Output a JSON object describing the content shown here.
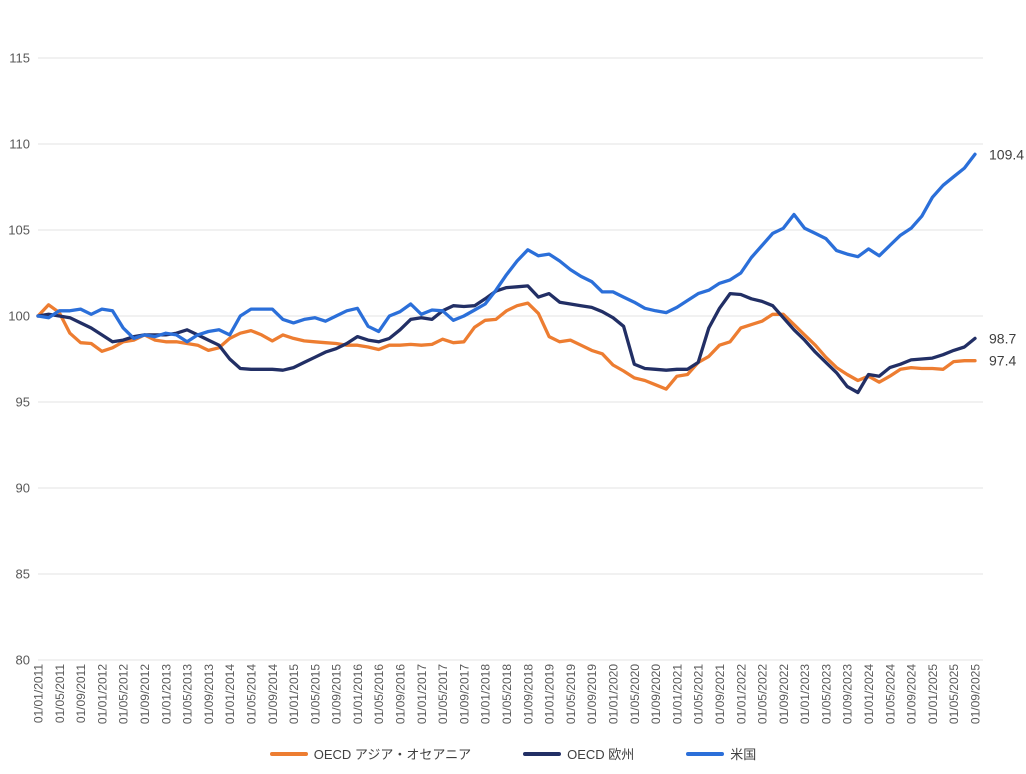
{
  "chart_data": {
    "type": "line",
    "title": "",
    "xlabel": "",
    "ylabel": "",
    "ylim": [
      80,
      115
    ],
    "y_ticks": [
      80,
      85,
      90,
      95,
      100,
      105,
      110,
      115
    ],
    "grid": "horizontal-only",
    "legend_position": "bottom",
    "months_span": 176,
    "sample_interval_months": 2,
    "x_start": "01/01/2011",
    "x_end": "01/09/2025",
    "x_tick_interval_months": 4,
    "x_labels": [
      "01/01/2011",
      "01/05/2011",
      "01/09/2011",
      "01/01/2012",
      "01/05/2012",
      "01/09/2012",
      "01/01/2013",
      "01/05/2013",
      "01/09/2013",
      "01/01/2014",
      "01/05/2014",
      "01/09/2014",
      "01/01/2015",
      "01/05/2015",
      "01/09/2015",
      "01/01/2016",
      "01/05/2016",
      "01/09/2016",
      "01/01/2017",
      "01/05/2017",
      "01/09/2017",
      "01/01/2018",
      "01/05/2018",
      "01/09/2018",
      "01/01/2019",
      "01/05/2019",
      "01/09/2019",
      "01/01/2020",
      "01/05/2020",
      "01/09/2020",
      "01/01/2021",
      "01/05/2021",
      "01/09/2021",
      "01/01/2022",
      "01/05/2022",
      "01/09/2022",
      "01/01/2023",
      "01/05/2023",
      "01/09/2023",
      "01/01/2024",
      "01/05/2024",
      "01/09/2024",
      "01/01/2025",
      "01/05/2025",
      "01/09/2025"
    ],
    "series": [
      {
        "name": "OECD アジア・オセアニア",
        "color": "#ED7D31",
        "end_label": "97.4",
        "values": [
          100.0,
          100.65,
          100.2,
          99.0,
          98.45,
          98.4,
          97.95,
          98.15,
          98.5,
          98.6,
          98.9,
          98.6,
          98.5,
          98.5,
          98.4,
          98.3,
          98.0,
          98.15,
          98.7,
          99.0,
          99.15,
          98.9,
          98.55,
          98.9,
          98.7,
          98.55,
          98.5,
          98.45,
          98.4,
          98.3,
          98.3,
          98.2,
          98.05,
          98.3,
          98.3,
          98.35,
          98.3,
          98.35,
          98.65,
          98.45,
          98.5,
          99.35,
          99.75,
          99.8,
          100.3,
          100.6,
          100.75,
          100.15,
          98.8,
          98.5,
          98.6,
          98.3,
          98.0,
          97.8,
          97.15,
          96.8,
          96.4,
          96.25,
          96.0,
          95.75,
          96.5,
          96.6,
          97.3,
          97.65,
          98.3,
          98.5,
          99.3,
          99.5,
          99.7,
          100.1,
          100.1,
          99.5,
          98.9,
          98.3,
          97.6,
          97.0,
          96.6,
          96.25,
          96.5,
          96.15,
          96.5,
          96.9,
          97.0,
          96.95,
          96.95,
          96.9,
          97.35,
          97.4,
          97.4
        ]
      },
      {
        "name": "OECD 欧州",
        "color": "#222F65",
        "end_label": "98.7",
        "values": [
          100.0,
          100.1,
          100.0,
          99.9,
          99.6,
          99.3,
          98.9,
          98.5,
          98.6,
          98.8,
          98.9,
          98.9,
          98.9,
          99.0,
          99.2,
          98.9,
          98.6,
          98.3,
          97.5,
          96.95,
          96.9,
          96.9,
          96.9,
          96.85,
          97.0,
          97.3,
          97.6,
          97.9,
          98.1,
          98.4,
          98.8,
          98.6,
          98.5,
          98.7,
          99.2,
          99.8,
          99.9,
          99.8,
          100.3,
          100.6,
          100.55,
          100.6,
          101.0,
          101.45,
          101.65,
          101.7,
          101.75,
          101.1,
          101.3,
          100.8,
          100.7,
          100.6,
          100.5,
          100.25,
          99.9,
          99.4,
          97.2,
          96.95,
          96.9,
          96.85,
          96.9,
          96.9,
          97.3,
          99.3,
          100.45,
          101.3,
          101.25,
          101.0,
          100.85,
          100.6,
          99.9,
          99.2,
          98.6,
          97.9,
          97.3,
          96.7,
          95.9,
          95.55,
          96.6,
          96.5,
          97.0,
          97.2,
          97.45,
          97.5,
          97.55,
          97.75,
          98.0,
          98.2,
          98.7
        ]
      },
      {
        "name": "米国",
        "color": "#2B6FD9",
        "end_label": "109.4",
        "values": [
          100.0,
          99.9,
          100.3,
          100.3,
          100.4,
          100.1,
          100.4,
          100.3,
          99.3,
          98.7,
          98.9,
          98.8,
          99.0,
          98.9,
          98.5,
          98.9,
          99.1,
          99.2,
          98.9,
          100.0,
          100.4,
          100.4,
          100.4,
          99.8,
          99.6,
          99.8,
          99.9,
          99.7,
          100.0,
          100.3,
          100.45,
          99.4,
          99.1,
          100.0,
          100.25,
          100.7,
          100.1,
          100.35,
          100.3,
          99.75,
          100.0,
          100.35,
          100.7,
          101.5,
          102.4,
          103.2,
          103.85,
          103.5,
          103.6,
          103.2,
          102.7,
          102.3,
          102.0,
          101.4,
          101.4,
          101.1,
          100.8,
          100.45,
          100.3,
          100.2,
          100.5,
          100.9,
          101.3,
          101.5,
          101.9,
          102.1,
          102.5,
          103.4,
          104.1,
          104.8,
          105.1,
          105.9,
          105.1,
          104.8,
          104.5,
          103.8,
          103.6,
          103.45,
          103.9,
          103.5,
          104.1,
          104.7,
          105.1,
          105.8,
          106.9,
          107.6,
          108.1,
          108.6,
          109.4
        ]
      }
    ],
    "colors": {
      "gridline": "#E3E3E3",
      "axis_label": "#595959",
      "end_label": "#3F3F3F",
      "background": "#FFFFFF"
    }
  }
}
